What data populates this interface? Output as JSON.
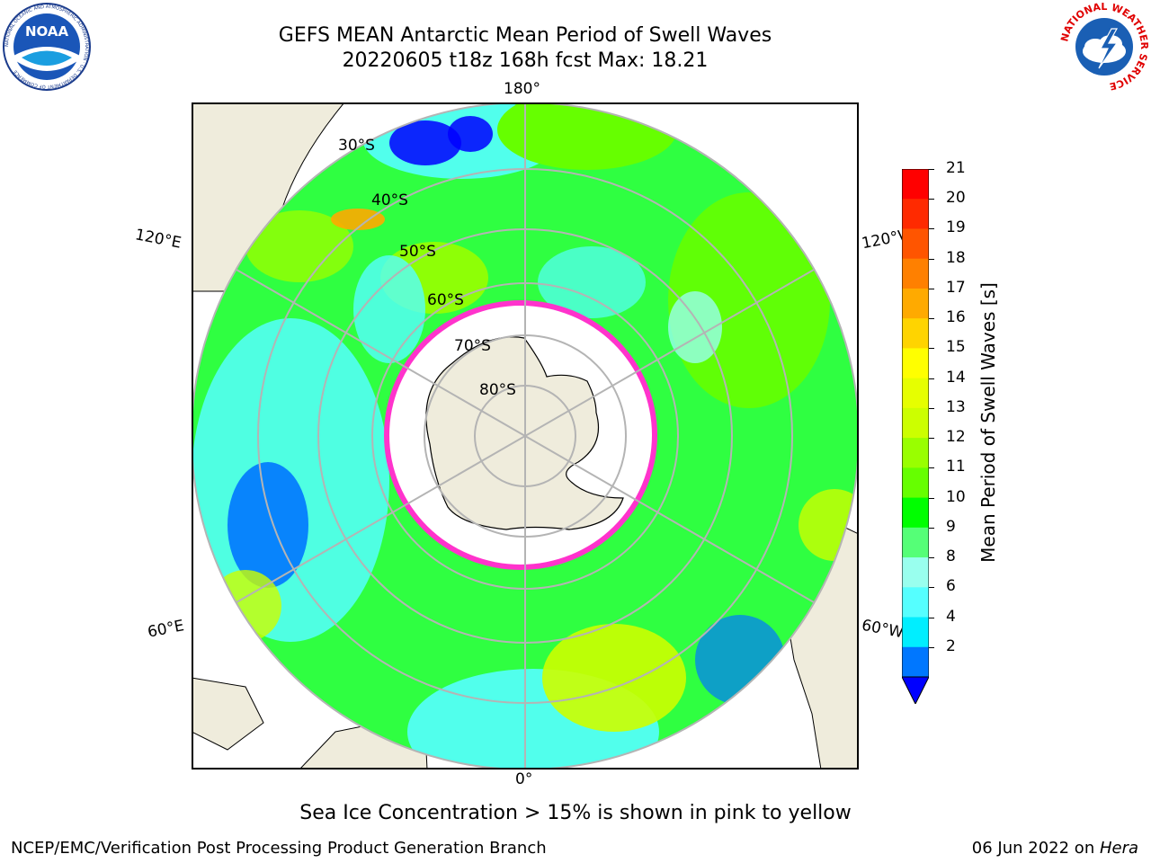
{
  "title": {
    "line1": "GEFS MEAN Antarctic Mean Period of Swell Waves",
    "line2": "20220605 t18z 168h fcst   Max: 18.21"
  },
  "logos": {
    "noaa_text": "NOAA",
    "noaa_ring_text": "NATIONAL OCEANIC AND ATMOSPHERIC ADMINISTRATION · U.S. DEPARTMENT OF COMMERCE",
    "nws_ring_text": "NATIONAL WEATHER SERVICE"
  },
  "map": {
    "projection": "south-polar-stereographic",
    "longitude_labels": {
      "top": "180°",
      "bottom": "0°",
      "left_upper": "120°E",
      "left_lower": "60°E",
      "right_upper": "120°W",
      "right_lower": "60°W"
    },
    "latitude_labels": [
      "30°S",
      "40°S",
      "50°S",
      "60°S",
      "70°S",
      "80°S"
    ],
    "colors": {
      "land": "#efecdc",
      "grid": "#b4b4b4",
      "ice_edge": "#ff33cc",
      "ice_inner": "#ffffff"
    }
  },
  "colorbar": {
    "label": "Mean Period of Swell Waves [s]",
    "ticks": [
      "21",
      "20",
      "19",
      "18",
      "17",
      "16",
      "15",
      "14",
      "13",
      "12",
      "11",
      "10",
      "9",
      "8",
      "6",
      "4",
      "2"
    ],
    "colors": [
      "#ff0000",
      "#ff2a00",
      "#ff5500",
      "#ff8000",
      "#ffaa00",
      "#ffd400",
      "#ffff00",
      "#e6ff00",
      "#ccff00",
      "#99ff00",
      "#66ff00",
      "#00ff00",
      "#55ff77",
      "#99ffee",
      "#55ffff",
      "#00eeff",
      "#0077ff",
      "#0000ff"
    ]
  },
  "caption": "Sea Ice Concentration > 15% is shown in pink to yellow",
  "footer": {
    "left": "NCEP/EMC/Verification Post Processing Product Generation Branch",
    "right_date": "06 Jun 2022 on ",
    "right_host": "Hera"
  }
}
